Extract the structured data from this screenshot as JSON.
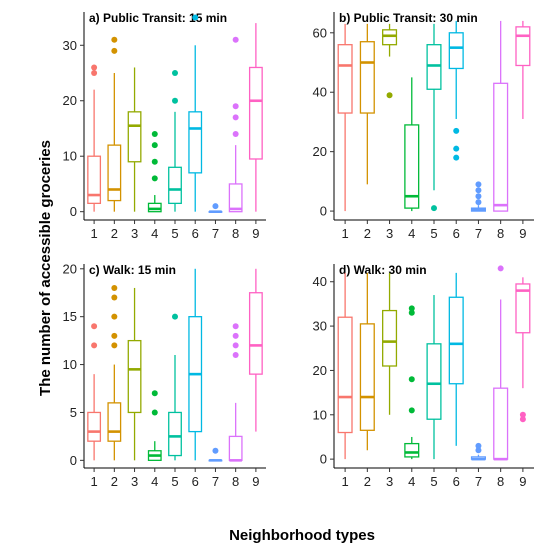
{
  "figure": {
    "ylabel": "The number of accessible groceries",
    "xlabel": "Neighborhood types"
  },
  "colors": [
    "#F8766D",
    "#D39200",
    "#93AA00",
    "#00BA38",
    "#00C19F",
    "#00B9E3",
    "#619CFF",
    "#DB72FB",
    "#FF61C3"
  ],
  "chart_data": [
    {
      "type": "box",
      "title": "a) Public Transit: 15 min",
      "xlabel": "Neighborhood types",
      "ylabel": "The number of accessible groceries",
      "categories": [
        "1",
        "2",
        "3",
        "4",
        "5",
        "6",
        "7",
        "8",
        "9"
      ],
      "ylim": [
        -1.5,
        36
      ],
      "yticks": [
        0,
        10,
        20,
        30
      ],
      "grid": false,
      "boxes": [
        {
          "whislo": 0,
          "q1": 1.5,
          "med": 3,
          "q3": 10,
          "whishi": 22,
          "fliers": [
            25,
            26
          ]
        },
        {
          "whislo": 0,
          "q1": 2,
          "med": 4,
          "q3": 12,
          "whishi": 25,
          "fliers": [
            29,
            31
          ]
        },
        {
          "whislo": 0,
          "q1": 9,
          "med": 15.5,
          "q3": 18,
          "whishi": 26,
          "fliers": []
        },
        {
          "whislo": 0,
          "q1": 0,
          "med": 0.5,
          "q3": 1.5,
          "whishi": 3,
          "fliers": [
            6,
            9,
            12,
            14
          ]
        },
        {
          "whislo": 0,
          "q1": 1.5,
          "med": 4,
          "q3": 8,
          "whishi": 18,
          "fliers": [
            20,
            25
          ]
        },
        {
          "whislo": 0,
          "q1": 7,
          "med": 15,
          "q3": 18,
          "whishi": 30,
          "fliers": [
            35
          ]
        },
        {
          "whislo": 0,
          "q1": 0,
          "med": 0,
          "q3": 0,
          "whishi": 0,
          "fliers": [
            1
          ]
        },
        {
          "whislo": 0,
          "q1": 0,
          "med": 0.5,
          "q3": 5,
          "whishi": 12,
          "fliers": [
            14,
            17,
            19,
            31
          ]
        },
        {
          "whislo": 0,
          "q1": 9.5,
          "med": 20,
          "q3": 26,
          "whishi": 34,
          "fliers": []
        }
      ]
    },
    {
      "type": "box",
      "title": "b) Public Transit: 30 min",
      "xlabel": "Neighborhood types",
      "ylabel": "The number of accessible groceries",
      "categories": [
        "1",
        "2",
        "3",
        "4",
        "5",
        "6",
        "7",
        "8",
        "9"
      ],
      "ylim": [
        -3,
        67
      ],
      "yticks": [
        0,
        20,
        40,
        60
      ],
      "grid": false,
      "boxes": [
        {
          "whislo": 0,
          "q1": 33,
          "med": 49,
          "q3": 56,
          "whishi": 63,
          "fliers": []
        },
        {
          "whislo": 9,
          "q1": 33,
          "med": 50,
          "q3": 57,
          "whishi": 63,
          "fliers": []
        },
        {
          "whislo": 52,
          "q1": 56,
          "med": 59,
          "q3": 61,
          "whishi": 63,
          "fliers": [
            39
          ]
        },
        {
          "whislo": 0,
          "q1": 1,
          "med": 5,
          "q3": 29,
          "whishi": 45,
          "fliers": []
        },
        {
          "whislo": 7,
          "q1": 41,
          "med": 49,
          "q3": 56,
          "whishi": 63,
          "fliers": [
            1
          ]
        },
        {
          "whislo": 31,
          "q1": 48,
          "med": 55,
          "q3": 60,
          "whishi": 64,
          "fliers": [
            18,
            21,
            27
          ]
        },
        {
          "whislo": 0,
          "q1": 0,
          "med": 0.5,
          "q3": 1,
          "whishi": 2,
          "fliers": [
            3,
            5,
            7,
            9
          ]
        },
        {
          "whislo": 0,
          "q1": 0,
          "med": 2,
          "q3": 43,
          "whishi": 64,
          "fliers": []
        },
        {
          "whislo": 31,
          "q1": 49,
          "med": 59,
          "q3": 62,
          "whishi": 64,
          "fliers": []
        }
      ]
    },
    {
      "type": "box",
      "title": "c) Walk: 15 min",
      "xlabel": "Neighborhood types",
      "ylabel": "The number of accessible groceries",
      "categories": [
        "1",
        "2",
        "3",
        "4",
        "5",
        "6",
        "7",
        "8",
        "9"
      ],
      "ylim": [
        -0.8,
        20.5
      ],
      "yticks": [
        0,
        5,
        10,
        15,
        20
      ],
      "grid": false,
      "boxes": [
        {
          "whislo": 0,
          "q1": 2,
          "med": 3,
          "q3": 5,
          "whishi": 9,
          "fliers": [
            12,
            14
          ]
        },
        {
          "whislo": 0,
          "q1": 2,
          "med": 3,
          "q3": 6,
          "whishi": 10,
          "fliers": [
            12,
            13,
            15,
            17,
            18
          ]
        },
        {
          "whislo": 0,
          "q1": 5,
          "med": 9.5,
          "q3": 12.5,
          "whishi": 18,
          "fliers": []
        },
        {
          "whislo": 0,
          "q1": 0,
          "med": 0.5,
          "q3": 1,
          "whishi": 2,
          "fliers": [
            5,
            7
          ]
        },
        {
          "whislo": 0,
          "q1": 0.5,
          "med": 2.5,
          "q3": 5,
          "whishi": 11,
          "fliers": [
            15
          ]
        },
        {
          "whislo": 0,
          "q1": 3,
          "med": 9,
          "q3": 15,
          "whishi": 20,
          "fliers": []
        },
        {
          "whislo": 0,
          "q1": 0,
          "med": 0,
          "q3": 0,
          "whishi": 0,
          "fliers": [
            1
          ]
        },
        {
          "whislo": 0,
          "q1": 0,
          "med": 0,
          "q3": 2.5,
          "whishi": 6,
          "fliers": [
            11,
            12,
            13,
            14
          ]
        },
        {
          "whislo": 3,
          "q1": 9,
          "med": 12,
          "q3": 17.5,
          "whishi": 20,
          "fliers": []
        }
      ]
    },
    {
      "type": "box",
      "title": "d) Walk: 30 min",
      "xlabel": "Neighborhood types",
      "ylabel": "The number of accessible groceries",
      "categories": [
        "1",
        "2",
        "3",
        "4",
        "5",
        "6",
        "7",
        "8",
        "9"
      ],
      "ylim": [
        -2,
        44
      ],
      "yticks": [
        0,
        10,
        20,
        30,
        40
      ],
      "grid": false,
      "boxes": [
        {
          "whislo": 0,
          "q1": 6,
          "med": 14,
          "q3": 32,
          "whishi": 42,
          "fliers": []
        },
        {
          "whislo": 2,
          "q1": 6.5,
          "med": 14,
          "q3": 30.5,
          "whishi": 42,
          "fliers": []
        },
        {
          "whislo": 10,
          "q1": 21,
          "med": 26.5,
          "q3": 33.5,
          "whishi": 42,
          "fliers": []
        },
        {
          "whislo": 0,
          "q1": 0.5,
          "med": 1.5,
          "q3": 3.5,
          "whishi": 5,
          "fliers": [
            11,
            18,
            33,
            34
          ]
        },
        {
          "whislo": 0,
          "q1": 9,
          "med": 17,
          "q3": 26,
          "whishi": 37,
          "fliers": []
        },
        {
          "whislo": 3,
          "q1": 17,
          "med": 26,
          "q3": 36.5,
          "whishi": 42,
          "fliers": []
        },
        {
          "whislo": 0,
          "q1": 0,
          "med": 0,
          "q3": 0.5,
          "whishi": 1,
          "fliers": [
            2,
            3
          ]
        },
        {
          "whislo": 0,
          "q1": 0,
          "med": 0,
          "q3": 16,
          "whishi": 36,
          "fliers": [
            43
          ]
        },
        {
          "whislo": 16,
          "q1": 28.5,
          "med": 38,
          "q3": 39.5,
          "whishi": 41,
          "fliers": [
            9,
            10
          ]
        }
      ]
    }
  ]
}
